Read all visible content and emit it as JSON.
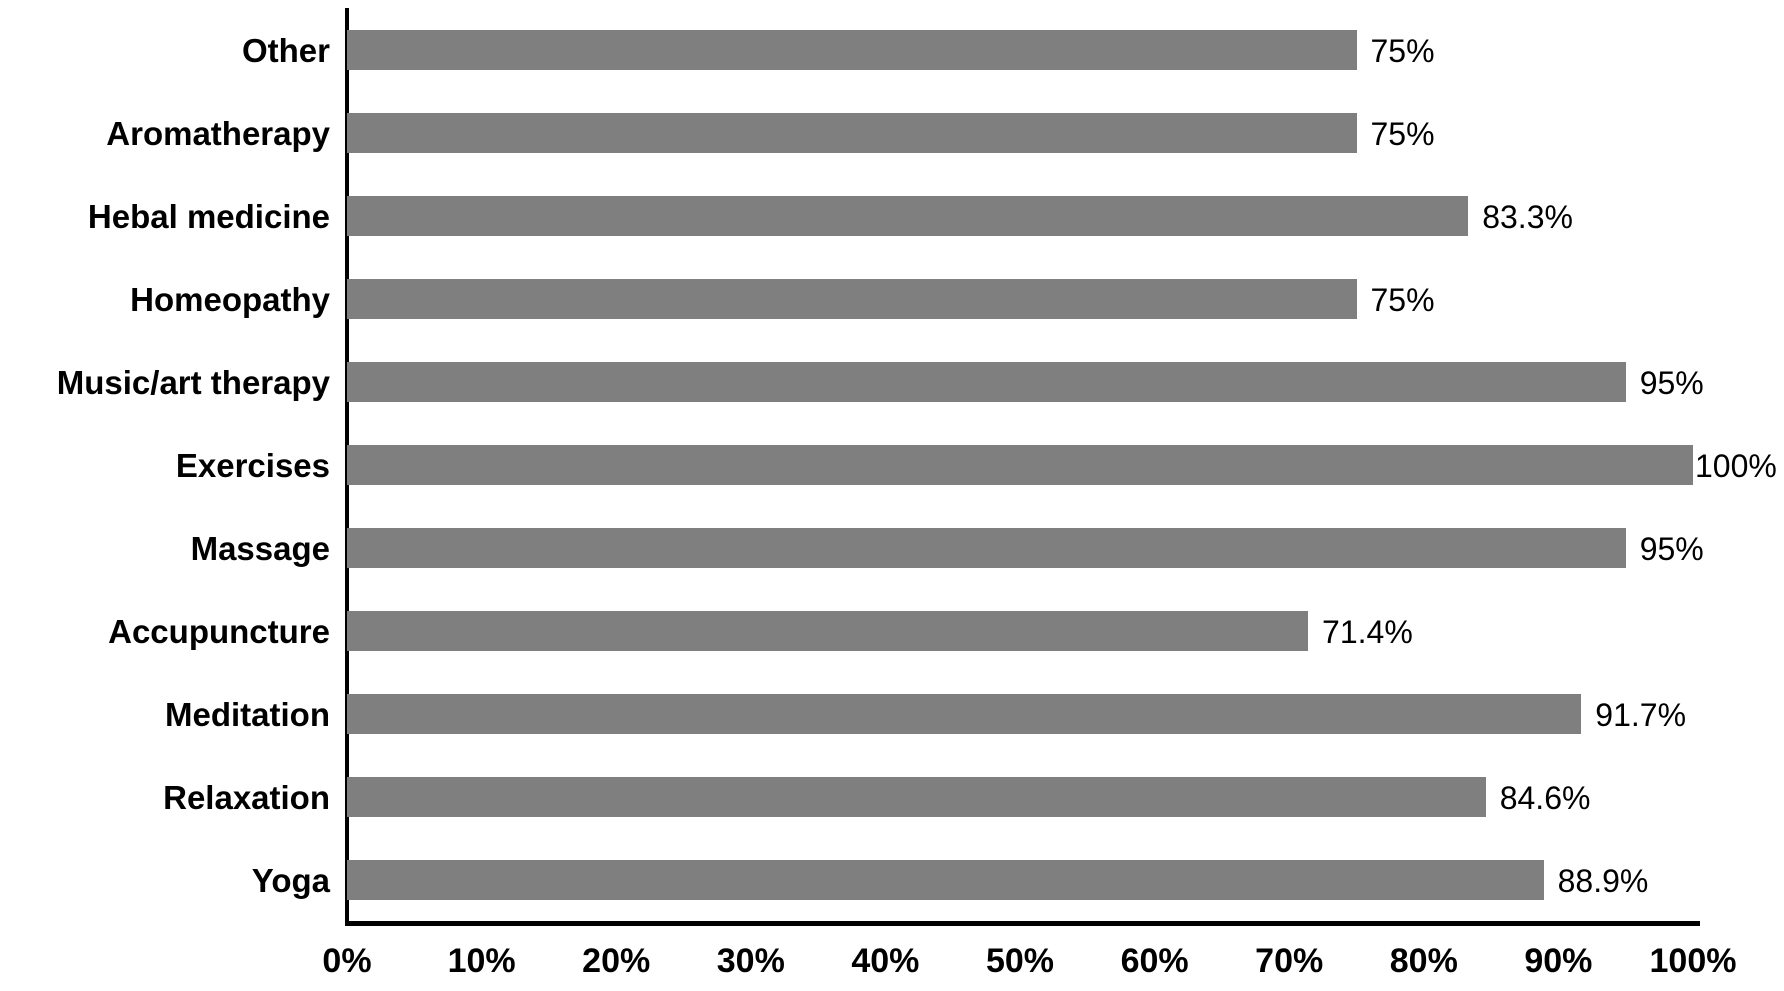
{
  "chart_data": {
    "type": "bar",
    "orientation": "horizontal",
    "title": "",
    "categories": [
      "Other",
      "Aromatherapy",
      "Hebal medicine",
      "Homeopathy",
      "Music/art therapy",
      "Exercises",
      "Massage",
      "Accupuncture",
      "Meditation",
      "Relaxation",
      "Yoga"
    ],
    "values": [
      75,
      75,
      83.3,
      75,
      95,
      100,
      95,
      71.4,
      91.7,
      84.6,
      88.9
    ],
    "value_labels": [
      "75%",
      "75%",
      "83.3%",
      "75%",
      "95%",
      "100%",
      "95%",
      "71.4%",
      "91.7%",
      "84.6%",
      "88.9%"
    ],
    "x_tick_labels": [
      "0%",
      "10%",
      "20%",
      "30%",
      "40%",
      "50%",
      "60%",
      "70%",
      "80%",
      "90%",
      "100%"
    ],
    "xlabel": "",
    "ylabel": "",
    "xlim": [
      0,
      100
    ],
    "grid": false,
    "legend": false,
    "colors": {
      "bar": "#7f7f7f",
      "axis": "#000000",
      "text": "#000000",
      "background": "#ffffff"
    }
  }
}
